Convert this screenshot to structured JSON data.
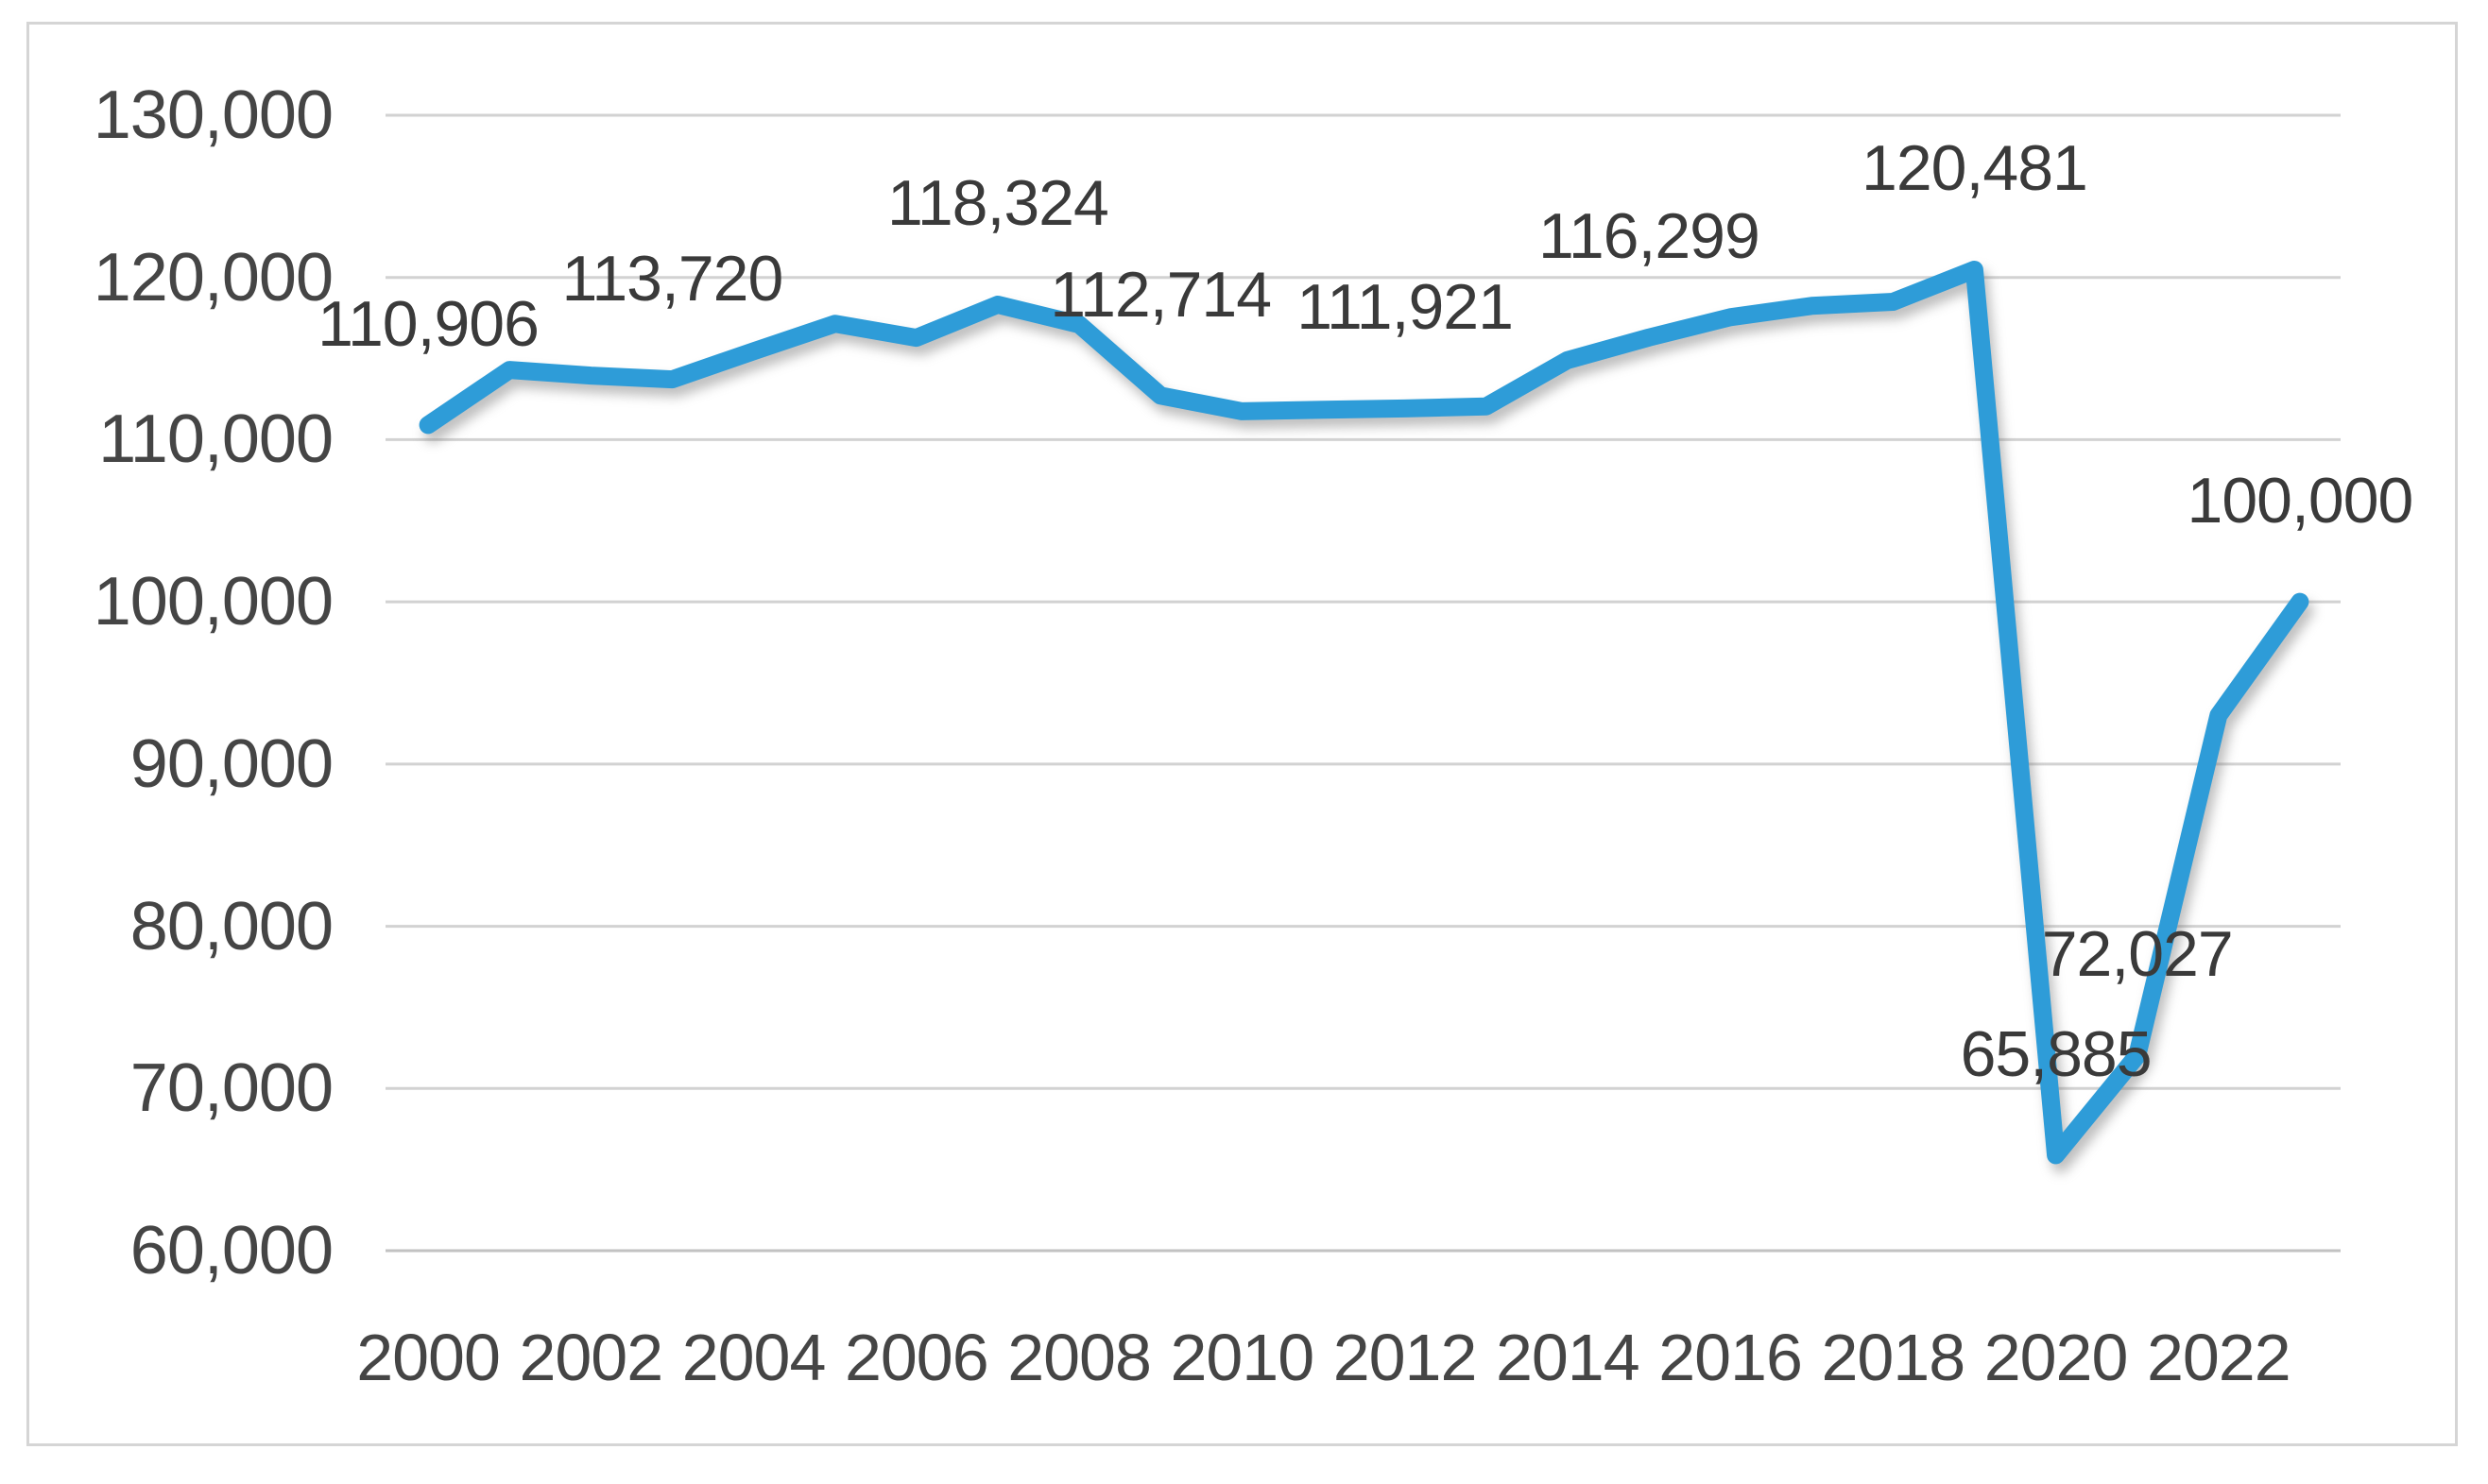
{
  "chart_data": {
    "type": "line",
    "title": "",
    "xlabel": "",
    "ylabel": "",
    "legend": "none",
    "grid": true,
    "ylim": [
      60000,
      130000
    ],
    "ytick_step": 10000,
    "x": [
      2000,
      2001,
      2002,
      2003,
      2004,
      2005,
      2006,
      2007,
      2008,
      2009,
      2010,
      2011,
      2012,
      2013,
      2014,
      2015,
      2016,
      2017,
      2018,
      2019,
      2020,
      2021,
      2022,
      2023
    ],
    "values": [
      110906,
      114300,
      113950,
      113720,
      115450,
      117150,
      116280,
      118324,
      117100,
      112714,
      111750,
      111850,
      111921,
      112050,
      114900,
      116299,
      117550,
      118250,
      118500,
      120481,
      65885,
      72027,
      93000,
      100000
    ],
    "y_ticks": [
      {
        "v": 60000,
        "label": "60,000"
      },
      {
        "v": 70000,
        "label": "70,000"
      },
      {
        "v": 80000,
        "label": "80,000"
      },
      {
        "v": 90000,
        "label": "90,000"
      },
      {
        "v": 100000,
        "label": "100,000"
      },
      {
        "v": 110000,
        "label": "110,000"
      },
      {
        "v": 120000,
        "label": "120,000"
      },
      {
        "v": 130000,
        "label": "130,000"
      }
    ],
    "x_ticks": [
      {
        "v": 2000,
        "label": "2000"
      },
      {
        "v": 2002,
        "label": "2002"
      },
      {
        "v": 2004,
        "label": "2004"
      },
      {
        "v": 2006,
        "label": "2006"
      },
      {
        "v": 2008,
        "label": "2008"
      },
      {
        "v": 2010,
        "label": "2010"
      },
      {
        "v": 2012,
        "label": "2012"
      },
      {
        "v": 2014,
        "label": "2014"
      },
      {
        "v": 2016,
        "label": "2016"
      },
      {
        "v": 2018,
        "label": "2018"
      },
      {
        "v": 2020,
        "label": "2020"
      },
      {
        "v": 2022,
        "label": "2022"
      }
    ],
    "data_labels": [
      {
        "x": 2000,
        "text": "110,906"
      },
      {
        "x": 2003,
        "text": "113,720"
      },
      {
        "x": 2007,
        "text": "118,324"
      },
      {
        "x": 2009,
        "text": "112,714"
      },
      {
        "x": 2012,
        "text": "111,921"
      },
      {
        "x": 2015,
        "text": "116,299"
      },
      {
        "x": 2019,
        "text": "120,481"
      },
      {
        "x": 2020,
        "text": "65,885"
      },
      {
        "x": 2021,
        "text": "72,027"
      },
      {
        "x": 2023,
        "text": "100,000"
      }
    ]
  },
  "style": {
    "line_color": "#2e9cd8",
    "grid_color": "#d2d2d2",
    "axis_line_color": "#c2c2c2",
    "axis_text_color": "#454545",
    "data_label_color": "#3a3a3a",
    "frame_border_color": "#d5d5d5",
    "background": "#ffffff"
  }
}
